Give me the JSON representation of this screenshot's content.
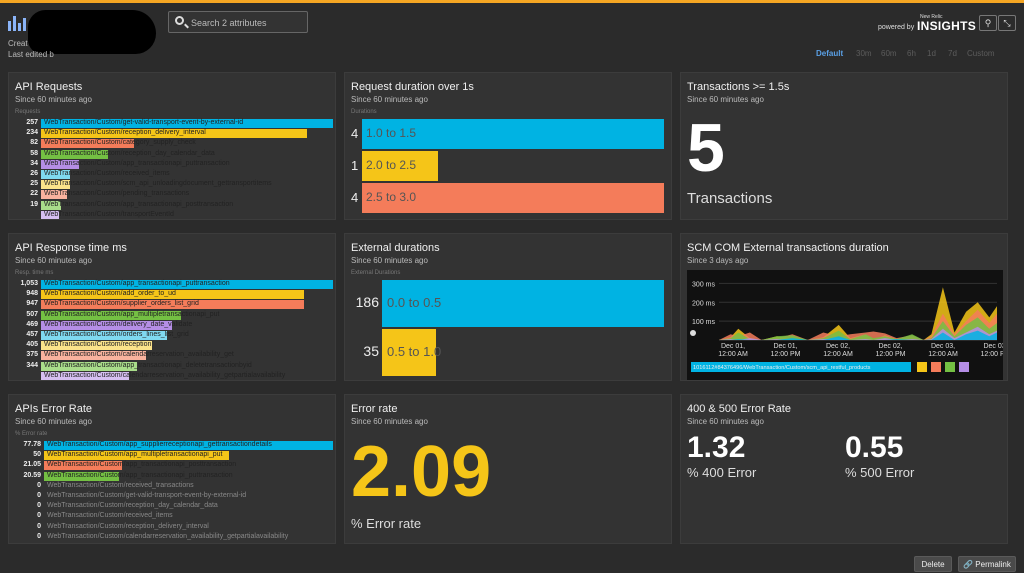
{
  "header": {
    "created_label": "Creat",
    "last_edited_label": "Last edited b",
    "search_placeholder": "Search 2 attributes",
    "powered_by": "powered by",
    "new_relic": "New Relic",
    "insights": "INSIGHTS",
    "tool_icons": [
      "pin-icon",
      "fullscreen-icon"
    ],
    "time_options": [
      "Default",
      "30m",
      "60m",
      "6h",
      "1d",
      "7d",
      "Custom"
    ],
    "selected_time": "Default"
  },
  "widgets": {
    "api_requests": {
      "title": "API Requests",
      "subtitle": "Since 60 minutes ago",
      "column_label": "Requests",
      "rows": [
        {
          "value": "257",
          "label": "WebTransaction/Custom/get-valid-transport-event-by-external-id",
          "color": "#00b3e3",
          "frac": 1.0
        },
        {
          "value": "234",
          "label": "WebTransaction/Custom/reception_delivery_interval",
          "color": "#f5c518",
          "frac": 0.91
        },
        {
          "value": "82",
          "label": "WebTransaction/Custom/category_supply_check",
          "color": "#f47c5a",
          "frac": 0.32
        },
        {
          "value": "58",
          "label": "WebTransaction/Custom/reception_day_calendar_data",
          "color": "#74c043",
          "frac": 0.23
        },
        {
          "value": "34",
          "label": "WebTransaction/Custom/app_transactionapi_puttransaction",
          "color": "#b58ee6",
          "frac": 0.13
        },
        {
          "value": "26",
          "label": "WebTransaction/Custom/received_items",
          "color": "#7fd9f0",
          "frac": 0.1
        },
        {
          "value": "25",
          "label": "WebTransaction/Custom/scm_api_unloadingdocument_gettransportitems",
          "color": "#fbe38a",
          "frac": 0.1
        },
        {
          "value": "22",
          "label": "WebTransaction/Custom/pending_transactions",
          "color": "#f9b29e",
          "frac": 0.09
        },
        {
          "value": "19",
          "label": "WebTransaction/Custom/app_transactionapi_posttransaction",
          "color": "#a9dd8a",
          "frac": 0.07
        },
        {
          "value": "",
          "label": "WebTransaction/Custom/transportEventId",
          "color": "#d6bff2",
          "frac": 0.06
        }
      ]
    },
    "request_duration": {
      "title": "Request duration over 1s",
      "subtitle": "Since 60 minutes ago",
      "column_label": "Durations",
      "rows": [
        {
          "value": "4",
          "label": "1.0 to 1.5",
          "color": "#00b3e3",
          "frac": 1.0
        },
        {
          "value": "1",
          "label": "2.0 to 2.5",
          "color": "#f5c518",
          "frac": 0.25
        },
        {
          "value": "4",
          "label": "2.5 to 3.0",
          "color": "#f47c5a",
          "frac": 1.0
        }
      ]
    },
    "transactions_15": {
      "title": "Transactions >= 1.5s",
      "subtitle": "Since 60 minutes ago",
      "value": "5",
      "unit": "Transactions"
    },
    "api_response": {
      "title": "API Response time ms",
      "subtitle": "Since 60 minutes ago",
      "column_label": "Resp. time ms",
      "rows": [
        {
          "value": "1,053",
          "label": "WebTransaction/Custom/app_transactionapi_puttransaction",
          "color": "#00b3e3",
          "frac": 1.0
        },
        {
          "value": "948",
          "label": "WebTransaction/Custom/add_order_to_ud",
          "color": "#f5c518",
          "frac": 0.9
        },
        {
          "value": "947",
          "label": "WebTransaction/Custom/supplier_orders_list_grid",
          "color": "#f47c5a",
          "frac": 0.9
        },
        {
          "value": "507",
          "label": "WebTransaction/Custom/app_multipletransactionapi_put",
          "color": "#74c043",
          "frac": 0.48
        },
        {
          "value": "469",
          "label": "WebTransaction/Custom/delivery_date_validate",
          "color": "#b58ee6",
          "frac": 0.45
        },
        {
          "value": "457",
          "label": "WebTransaction/Custom/orders_lines_list_grid",
          "color": "#7fd9f0",
          "frac": 0.43
        },
        {
          "value": "405",
          "label": "WebTransaction/Custom/reception",
          "color": "#fbe38a",
          "frac": 0.38
        },
        {
          "value": "375",
          "label": "WebTransaction/Custom/calendarreservation_availability_get",
          "color": "#f9b29e",
          "frac": 0.36
        },
        {
          "value": "344",
          "label": "WebTransaction/Custom/app_transactionapi_deletetransactionbyid",
          "color": "#a9dd8a",
          "frac": 0.33
        },
        {
          "value": "",
          "label": "WebTransaction/Custom/calendarreservation_availability_getpartialavailability",
          "color": "#d6bff2",
          "frac": 0.3
        }
      ]
    },
    "external_durations": {
      "title": "External durations",
      "subtitle": "Since 60 minutes ago",
      "column_label": "External Durations",
      "rows": [
        {
          "value": "186",
          "label": "0.0 to 0.5",
          "color": "#00b3e3",
          "frac": 1.0
        },
        {
          "value": "35",
          "label": "0.5 to 1.0",
          "color": "#f5c518",
          "frac": 0.19
        }
      ]
    },
    "scm_chart": {
      "title": "SCM COM External transactions duration",
      "subtitle": "Since 3 days ago",
      "legend_label": "1016112#84376496/WebTransaction/Custom/scm_api_restful_products",
      "legend_colors": [
        "#f5c518",
        "#f47c5a",
        "#74c043",
        "#b58ee6"
      ]
    },
    "api_error_rate": {
      "title": "APIs Error Rate",
      "subtitle": "Since 60 minutes ago",
      "column_label": "% Error rate",
      "rows": [
        {
          "value": "77.78",
          "label": "WebTransaction/Custom/app_supplierreceptionapi_gettransactiondetails",
          "color": "#00b3e3",
          "frac": 1.0
        },
        {
          "value": "50",
          "label": "WebTransaction/Custom/app_multipletransactionapi_put",
          "color": "#f5c518",
          "frac": 0.64
        },
        {
          "value": "21.05",
          "label": "WebTransaction/Custom/app_transactionapi_posttransaction",
          "color": "#f47c5a",
          "frac": 0.27
        },
        {
          "value": "20.59",
          "label": "WebTransaction/Custom/app_transactionapi_puttransaction",
          "color": "#74c043",
          "frac": 0.26
        },
        {
          "value": "0",
          "label": "WebTransaction/Custom/received_transactions",
          "color": "#b58ee6",
          "frac": 0
        },
        {
          "value": "0",
          "label": "WebTransaction/Custom/get-valid-transport-event-by-external-id",
          "color": "#7fd9f0",
          "frac": 0
        },
        {
          "value": "0",
          "label": "WebTransaction/Custom/reception_day_calendar_data",
          "color": "#fbe38a",
          "frac": 0
        },
        {
          "value": "0",
          "label": "WebTransaction/Custom/received_items",
          "color": "#f9b29e",
          "frac": 0
        },
        {
          "value": "0",
          "label": "WebTransaction/Custom/reception_delivery_interval",
          "color": "#a9dd8a",
          "frac": 0
        },
        {
          "value": "0",
          "label": "WebTransaction/Custom/calendarreservation_availability_getpartialavailability",
          "color": "#d6bff2",
          "frac": 0
        }
      ]
    },
    "error_rate": {
      "title": "Error rate",
      "subtitle": "Since 60 minutes ago",
      "value": "2.09",
      "unit": "% Error rate"
    },
    "error_400_500": {
      "title": "400 & 500 Error Rate",
      "subtitle": "Since 60 minutes ago",
      "v400": "1.32",
      "l400": "% 400 Error",
      "v500": "0.55",
      "l500": "% 500 Error"
    }
  },
  "footer": {
    "delete_label": "Delete",
    "permalink_label": "Permalink"
  },
  "chart_data": {
    "type": "area",
    "title": "SCM COM External transactions duration",
    "yticks": [
      "300 ms",
      "200 ms",
      "100 ms"
    ],
    "xticks": [
      "Dec 01, 12:00 AM",
      "Dec 01, 12:00 PM",
      "Dec 02, 12:00 AM",
      "Dec 02, 12:00 PM",
      "Dec 03, 12:00 AM",
      "Dec 03, 12:00 PM"
    ],
    "ylim": [
      0,
      350
    ],
    "x": [
      0,
      3,
      5,
      8,
      11,
      15,
      19,
      23,
      27,
      31,
      34,
      38,
      40,
      43,
      46,
      50,
      53,
      55,
      58,
      61,
      64,
      67,
      70,
      72
    ],
    "series": [
      {
        "color": "#f5c518",
        "values": [
          0,
          15,
          60,
          10,
          0,
          20,
          5,
          0,
          15,
          80,
          10,
          30,
          0,
          25,
          5,
          15,
          0,
          30,
          280,
          40,
          150,
          200,
          120,
          180
        ]
      },
      {
        "color": "#f47c5a",
        "values": [
          0,
          30,
          20,
          40,
          0,
          10,
          30,
          0,
          40,
          20,
          30,
          40,
          45,
          35,
          10,
          25,
          0,
          20,
          140,
          30,
          100,
          160,
          90,
          140
        ]
      },
      {
        "color": "#74c043",
        "values": [
          0,
          10,
          40,
          5,
          0,
          20,
          25,
          0,
          10,
          50,
          5,
          30,
          10,
          20,
          5,
          30,
          0,
          10,
          100,
          20,
          80,
          120,
          60,
          90
        ]
      },
      {
        "color": "#b58ee6",
        "values": [
          0,
          5,
          0,
          10,
          0,
          5,
          0,
          0,
          5,
          10,
          0,
          5,
          0,
          10,
          0,
          5,
          0,
          5,
          60,
          10,
          40,
          70,
          30,
          50
        ]
      },
      {
        "color": "#00b3e3",
        "values": [
          0,
          0,
          5,
          0,
          0,
          0,
          10,
          0,
          0,
          20,
          0,
          0,
          0,
          0,
          5,
          0,
          0,
          0,
          40,
          0,
          30,
          50,
          20,
          40
        ]
      }
    ]
  }
}
